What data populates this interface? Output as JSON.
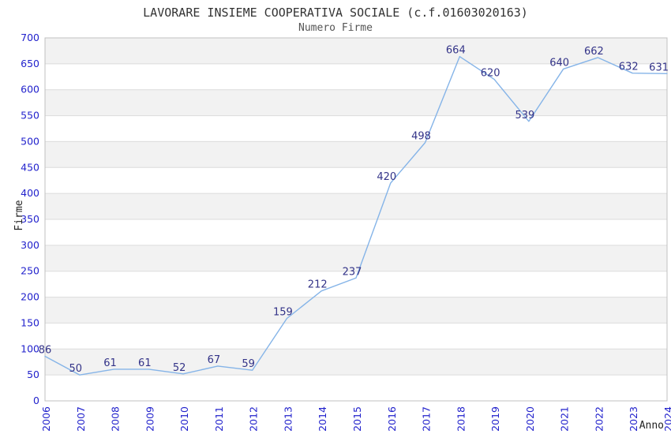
{
  "chart_data": {
    "type": "line",
    "title": "LAVORARE INSIEME COOPERATIVA SOCIALE (c.f.01603020163)",
    "subtitle": "Numero Firme",
    "xlabel": "Anno",
    "ylabel": "Firme",
    "categories": [
      "2006",
      "2007",
      "2008",
      "2009",
      "2010",
      "2011",
      "2012",
      "2013",
      "2014",
      "2015",
      "2016",
      "2017",
      "2018",
      "2019",
      "2020",
      "2021",
      "2022",
      "2023",
      "2024"
    ],
    "series": [
      {
        "name": "Numero Firme",
        "values": [
          86,
          50,
          61,
          61,
          52,
          67,
          59,
          159,
          212,
          237,
          420,
          498,
          664,
          620,
          539,
          640,
          662,
          632,
          631
        ]
      }
    ],
    "ylim": [
      0,
      700
    ],
    "ytick_step": 50,
    "yticks": [
      0,
      50,
      100,
      150,
      200,
      250,
      300,
      350,
      400,
      450,
      500,
      550,
      600,
      650,
      700
    ],
    "grid": "horizontal-bands-alternating",
    "legend": "none",
    "colors": {
      "line": "#85b4e8",
      "data_label": "#333388",
      "tick_label": "#2222cc",
      "band": "#f2f2f2",
      "band_alt": "#ffffff",
      "grid_line": "#dcdcdc",
      "border": "#c0c0c0",
      "title": "#333333",
      "subtitle": "#555555",
      "axis_title": "#222222"
    }
  }
}
